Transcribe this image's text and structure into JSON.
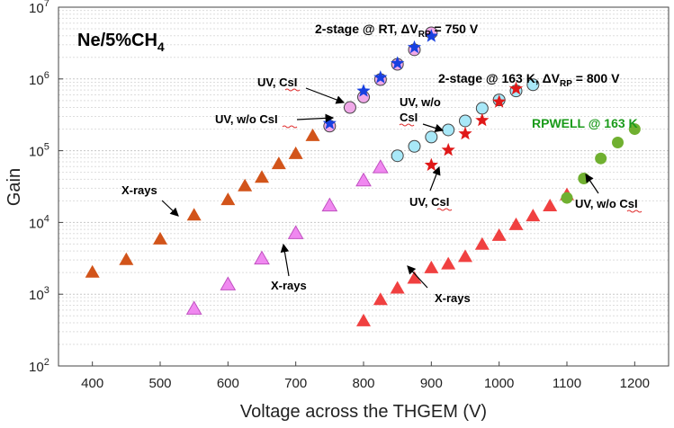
{
  "chart_data": {
    "type": "scatter",
    "title": "",
    "xlabel": "Voltage across the THGEM (V)",
    "ylabel": "Gain",
    "xlim": [
      350,
      1250
    ],
    "ylim_log10": [
      2,
      7
    ],
    "x_ticks": [
      400,
      500,
      600,
      700,
      800,
      900,
      1000,
      1100,
      1200
    ],
    "y_tick_base": "10",
    "y_tick_exponents": [
      "2",
      "3",
      "4",
      "5",
      "6",
      "7"
    ],
    "grid": "log minor gridlines, dotted",
    "gas_label": {
      "main": "Ne/5%CH",
      "sub": "4"
    },
    "series": [
      {
        "name": "2-stage @ RT, X-rays",
        "marker": "triangle",
        "color": "#d2541a",
        "x": [
          400,
          450,
          500,
          550,
          600,
          625,
          650,
          675,
          700,
          725
        ],
        "y": [
          2000,
          3000,
          5800,
          12500,
          20500,
          32000,
          42000,
          65000,
          90000,
          160000
        ]
      },
      {
        "name": "2-stage @ RT, UV w/o CsI",
        "marker": "circle",
        "color": "#f0a8e8",
        "x": [
          750,
          780,
          800,
          825,
          850,
          875,
          900
        ],
        "y": [
          220000,
          400000,
          560000,
          980000,
          1600000,
          2550000,
          4400000
        ]
      },
      {
        "name": "2-stage @ RT, UV CsI",
        "marker": "star",
        "color": "#1840e0",
        "x": [
          750,
          800,
          825,
          850,
          875,
          900
        ],
        "y": [
          240000,
          680000,
          1050000,
          1650000,
          2750000,
          3950000
        ]
      },
      {
        "name": "2-stage @ 163 K, X-rays",
        "marker": "triangle",
        "color": "#f088f0",
        "x": [
          550,
          600,
          650,
          700,
          750,
          800,
          825
        ],
        "y": [
          620,
          1350,
          3100,
          7000,
          17000,
          38000,
          58000
        ]
      },
      {
        "name": "2-stage @ 163 K, UV w/o CsI",
        "marker": "circle",
        "color": "#a8e8f8",
        "x": [
          850,
          875,
          900,
          925,
          950,
          975,
          1000,
          1025,
          1050
        ],
        "y": [
          85000,
          115000,
          155000,
          195000,
          260000,
          390000,
          510000,
          680000,
          830000
        ]
      },
      {
        "name": "2-stage @ 163 K, UV CsI",
        "marker": "star",
        "color": "#e01818",
        "x": [
          900,
          925,
          950,
          975,
          1000,
          1025
        ],
        "y": [
          63000,
          102000,
          172000,
          265000,
          480000,
          730000
        ]
      },
      {
        "name": "RPWELL @ 163 K, X-rays",
        "marker": "triangle",
        "color": "#f04040",
        "x": [
          800,
          825,
          850,
          875,
          900,
          925,
          950,
          975,
          1000,
          1025,
          1050,
          1075,
          1100
        ],
        "y": [
          420,
          830,
          1200,
          1650,
          2300,
          2600,
          3300,
          4900,
          6500,
          9200,
          12200,
          16800,
          24000
        ]
      },
      {
        "name": "RPWELL @ 163 K, UV w/o CsI",
        "marker": "circle",
        "color": "#70b030",
        "x": [
          1100,
          1125,
          1150,
          1175,
          1200
        ],
        "y": [
          22000,
          41000,
          78000,
          130000,
          200000
        ]
      }
    ],
    "annotations": {
      "rt_header": {
        "pre": "2-stage  @ RT, ",
        "delta": "ΔV",
        "sub": "RP",
        "post": " = 750 V"
      },
      "lowT_header": {
        "pre": "2-stage  @ 163  K, ",
        "delta": "ΔV",
        "sub": "RP",
        "post": " = 800 V"
      },
      "rpwell_header": "RPWELL @ 163 K",
      "uv_csi_rt": "UV, CsI",
      "uv_wo_csi_rt": "UV, w/o CsI",
      "xrays_rt": "X-rays",
      "xrays_163": "X-rays",
      "uv_wo_csi_163_line1": "UV, w/o",
      "uv_wo_csi_163_line2": "CsI",
      "uv_csi_163": "UV, CsI",
      "xrays_rpwell": "X-rays",
      "uv_wo_csi_rpwell": "UV, w/o CsI"
    }
  }
}
